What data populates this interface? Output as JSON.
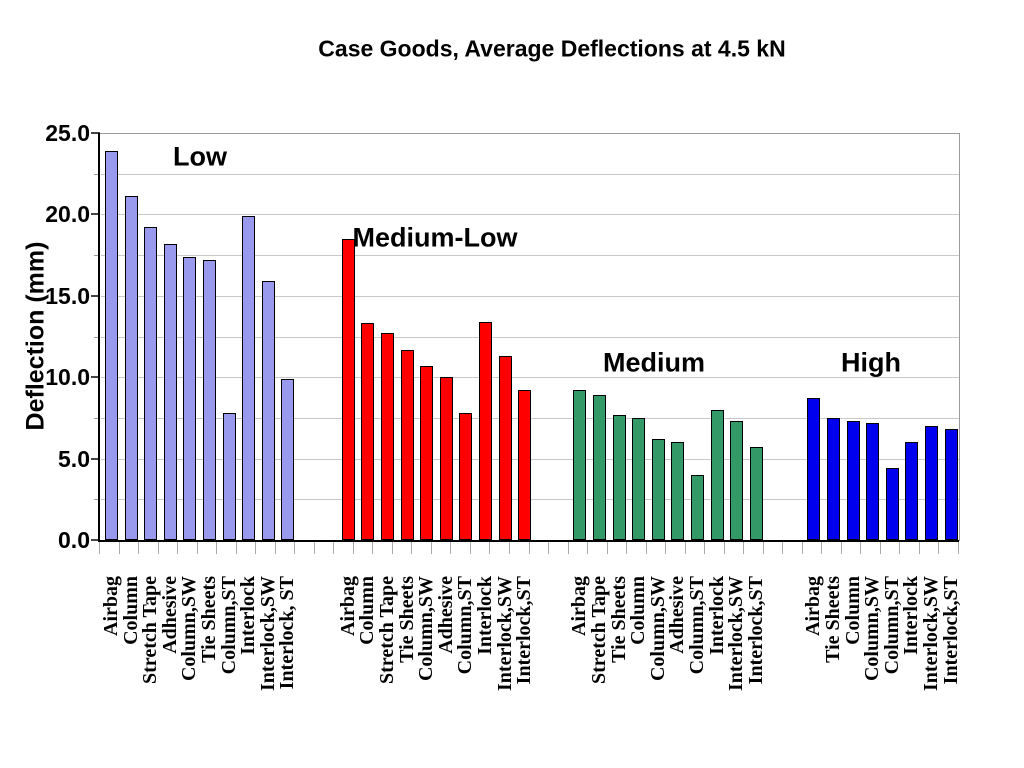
{
  "title": "Case Goods, Average Deflections at 4.5 kN",
  "chart_data": {
    "type": "bar",
    "title": "Case Goods, Average Deflections at 4.5 kN",
    "xlabel": "",
    "ylabel": "Deflection (mm)",
    "ylim": [
      0,
      25
    ],
    "ytick_labels": [
      "25.0",
      "20.0",
      "15.0",
      "10.0",
      "5.0",
      "0.0"
    ],
    "ytick_major_interval": 5,
    "ytick_minor_interval": 2.5,
    "grid": "horizontal, light gray, every 2.5 mm",
    "legend_position": "none",
    "groups": [
      {
        "label": "Low",
        "color": "#9999EE",
        "categories": [
          "Airbag",
          "Column",
          "Stretch Tape",
          "Adhesive",
          "Column,SW",
          "Tie Sheets",
          "Column,ST",
          "Interlock",
          "Interlock,SW",
          "Interlock, ST"
        ],
        "values": [
          23.9,
          21.1,
          19.2,
          18.2,
          17.4,
          17.2,
          7.8,
          19.9,
          15.9,
          9.9
        ]
      },
      {
        "label": "Medium-Low",
        "color": "#FF0000",
        "categories": [
          "Airbag",
          "Column",
          "Stretch Tape",
          "Tie Sheets",
          "Column,SW",
          "Adhesive",
          "Column,ST",
          "Interlock",
          "Interlock,SW",
          "Interlock,ST"
        ],
        "values": [
          18.5,
          13.3,
          12.7,
          11.7,
          10.7,
          10.0,
          7.8,
          13.4,
          11.3,
          9.2
        ]
      },
      {
        "label": "Medium",
        "color": "#339966",
        "categories": [
          "Airbag",
          "Stretch Tape",
          "Tie Sheets",
          "Column",
          "Column,SW",
          "Adhesive",
          "Column,ST",
          "Interlock",
          "Interlock,SW",
          "Interlock,ST"
        ],
        "values": [
          9.2,
          8.9,
          7.7,
          7.5,
          6.2,
          6.0,
          4.0,
          8.0,
          7.3,
          5.7
        ]
      },
      {
        "label": "High",
        "color": "#0000EE",
        "categories": [
          "Airbag",
          "Tie Sheets",
          "Column",
          "Column,SW",
          "Column,ST",
          "Interlock",
          "Interlock,SW",
          "Interlock,ST"
        ],
        "values": [
          8.7,
          7.5,
          7.3,
          7.2,
          4.4,
          6.0,
          7.0,
          6.8
        ]
      }
    ],
    "bar_border_color": "#000000",
    "background_color": "#FFFFFF"
  }
}
